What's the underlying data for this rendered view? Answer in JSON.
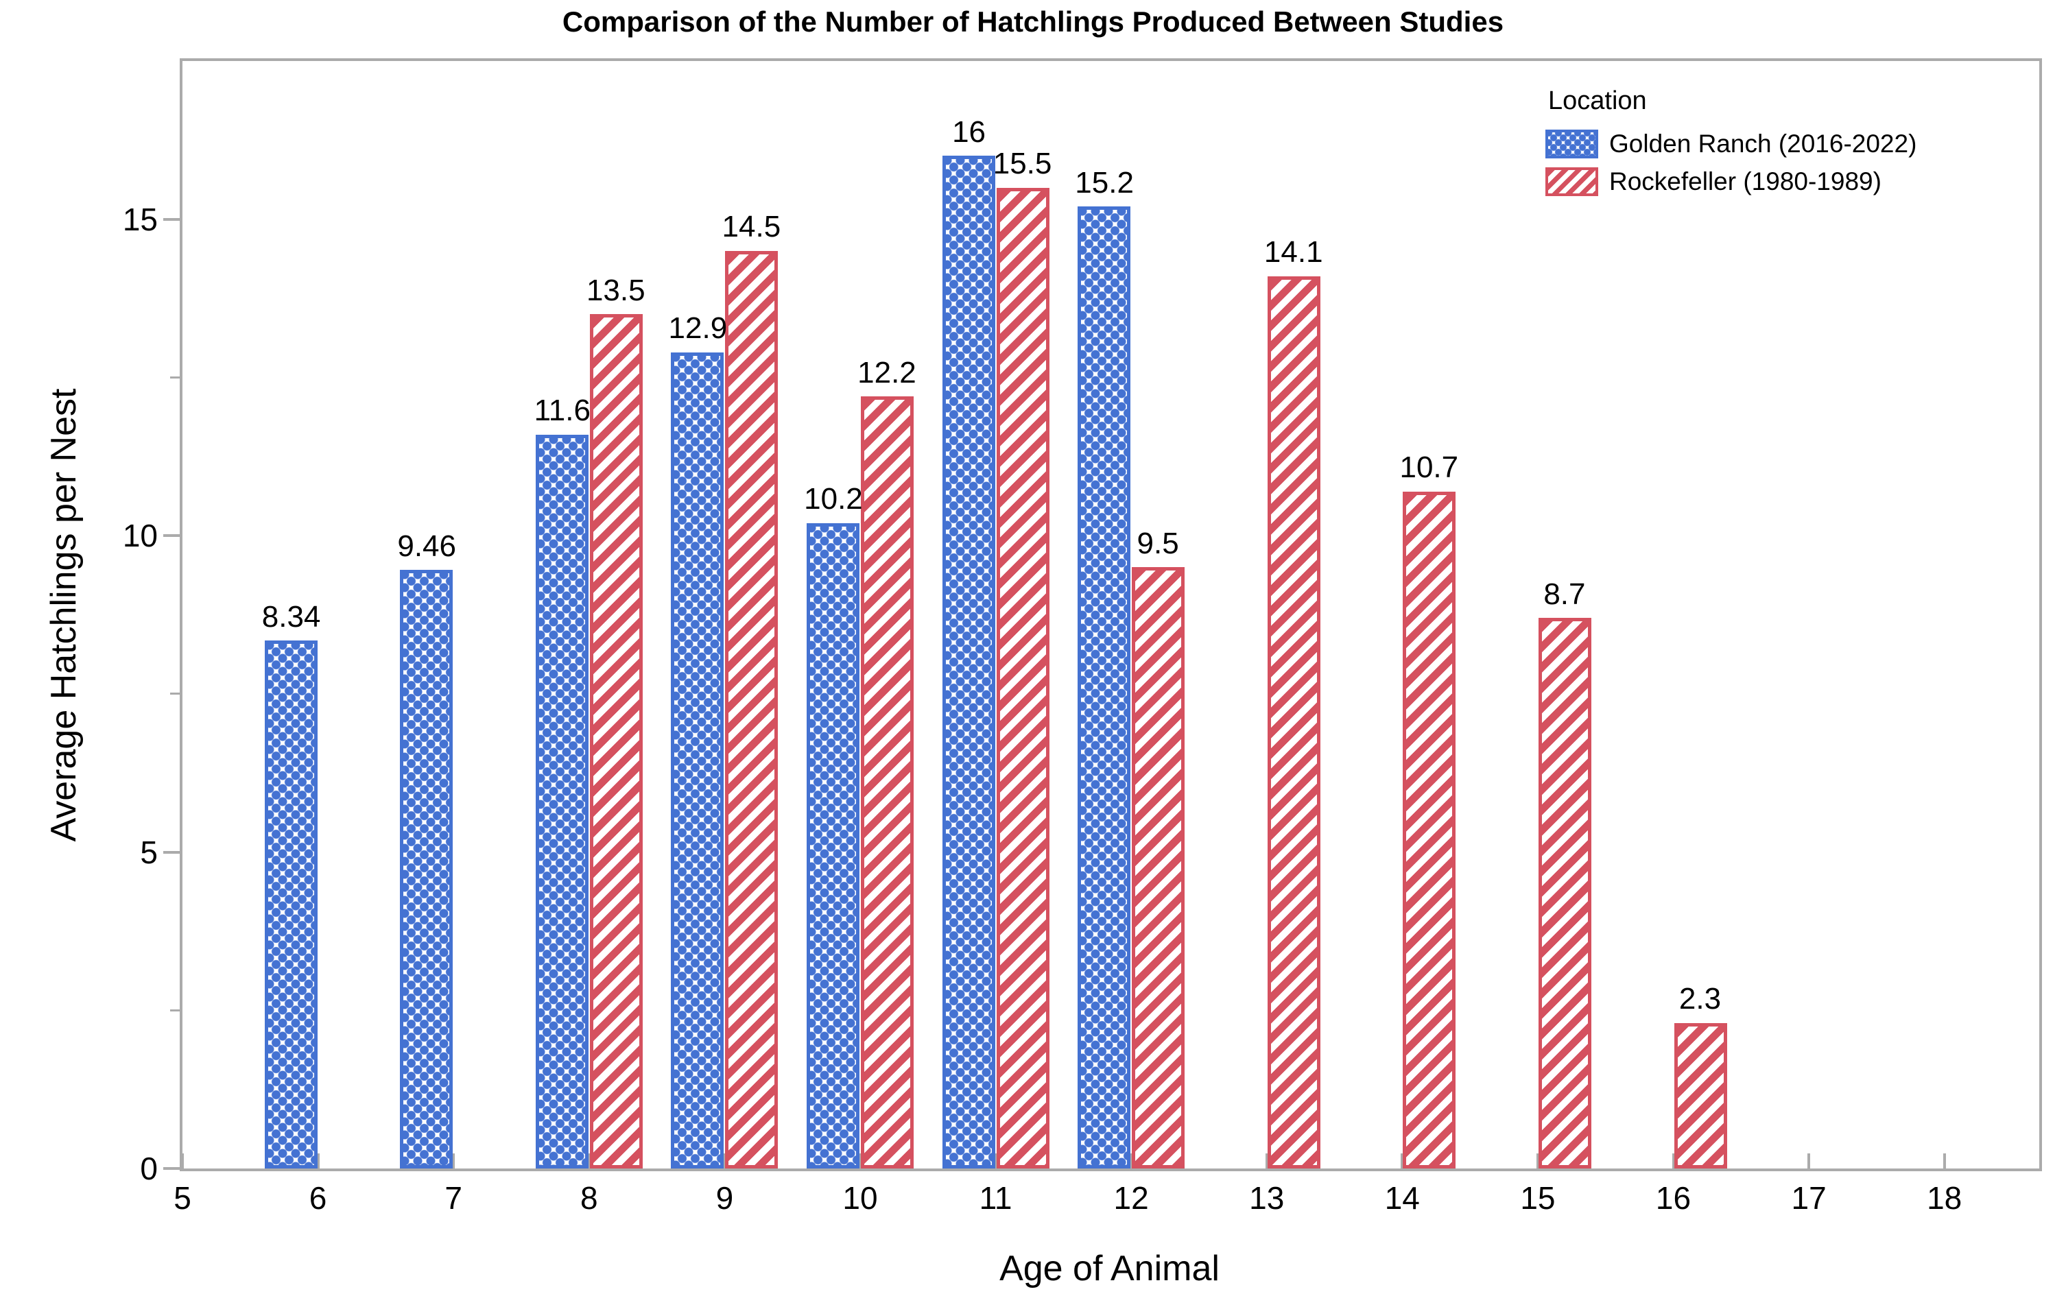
{
  "figure": {
    "title": "Comparison of the Number of Hatchlings Produced Between Studies"
  },
  "axes": {
    "x_title": "Age of Animal",
    "y_title": "Average Hatchlings per Nest"
  },
  "legend": {
    "title": "Location",
    "entries": [
      {
        "label": "Golden Ranch (2016-2022)",
        "pattern": "dots",
        "color": "#4472D2"
      },
      {
        "label": "Rockefeller (1980-1989)",
        "pattern": "diagonal-stripes",
        "color": "#D5515F"
      }
    ]
  },
  "colors": {
    "golden_ranch_blue": "#4472D2",
    "rockefeller_red": "#D5515F",
    "axis_gray": "#ABABAB",
    "text_black": "#000000",
    "background": "#FFFFFF"
  },
  "chart_data": {
    "type": "bar",
    "title": "Comparison of the Number of Hatchlings Produced Between Studies",
    "xlabel": "Age of Animal",
    "ylabel": "Average Hatchlings per Nest",
    "xlim": [
      5,
      18.7
    ],
    "ylim": [
      0,
      17.5
    ],
    "x_ticks": [
      5,
      6,
      7,
      8,
      9,
      10,
      11,
      12,
      13,
      14,
      15,
      16,
      17,
      18
    ],
    "y_major_ticks": [
      0,
      5,
      10,
      15
    ],
    "y_minor_ticks": [
      2.5,
      7.5,
      12.5,
      17.5
    ],
    "grid": false,
    "legend_position": "top-right-inside",
    "bar_arrangement": "paired: first series left of age tick, second series right of age tick",
    "series": [
      {
        "name": "Golden Ranch (2016-2022)",
        "pattern": "dots",
        "color": "#4472D2",
        "points": [
          {
            "x": 6,
            "y": 8.34,
            "label": "8.34"
          },
          {
            "x": 7,
            "y": 9.46,
            "label": "9.46"
          },
          {
            "x": 8,
            "y": 11.6,
            "label": "11.6"
          },
          {
            "x": 9,
            "y": 12.9,
            "label": "12.9"
          },
          {
            "x": 10,
            "y": 10.2,
            "label": "10.2"
          },
          {
            "x": 11,
            "y": 16,
            "label": "16"
          },
          {
            "x": 12,
            "y": 15.2,
            "label": "15.2"
          }
        ]
      },
      {
        "name": "Rockefeller (1980-1989)",
        "pattern": "diagonal-stripes",
        "color": "#D5515F",
        "points": [
          {
            "x": 8,
            "y": 13.5,
            "label": "13.5"
          },
          {
            "x": 9,
            "y": 14.5,
            "label": "14.5"
          },
          {
            "x": 10,
            "y": 12.2,
            "label": "12.2"
          },
          {
            "x": 11,
            "y": 15.5,
            "label": "15.5"
          },
          {
            "x": 12,
            "y": 9.5,
            "label": "9.5"
          },
          {
            "x": 13,
            "y": 14.1,
            "label": "14.1"
          },
          {
            "x": 14,
            "y": 10.7,
            "label": "10.7"
          },
          {
            "x": 15,
            "y": 8.7,
            "label": "8.7"
          },
          {
            "x": 16,
            "y": 2.3,
            "label": "2.3"
          }
        ]
      }
    ]
  }
}
